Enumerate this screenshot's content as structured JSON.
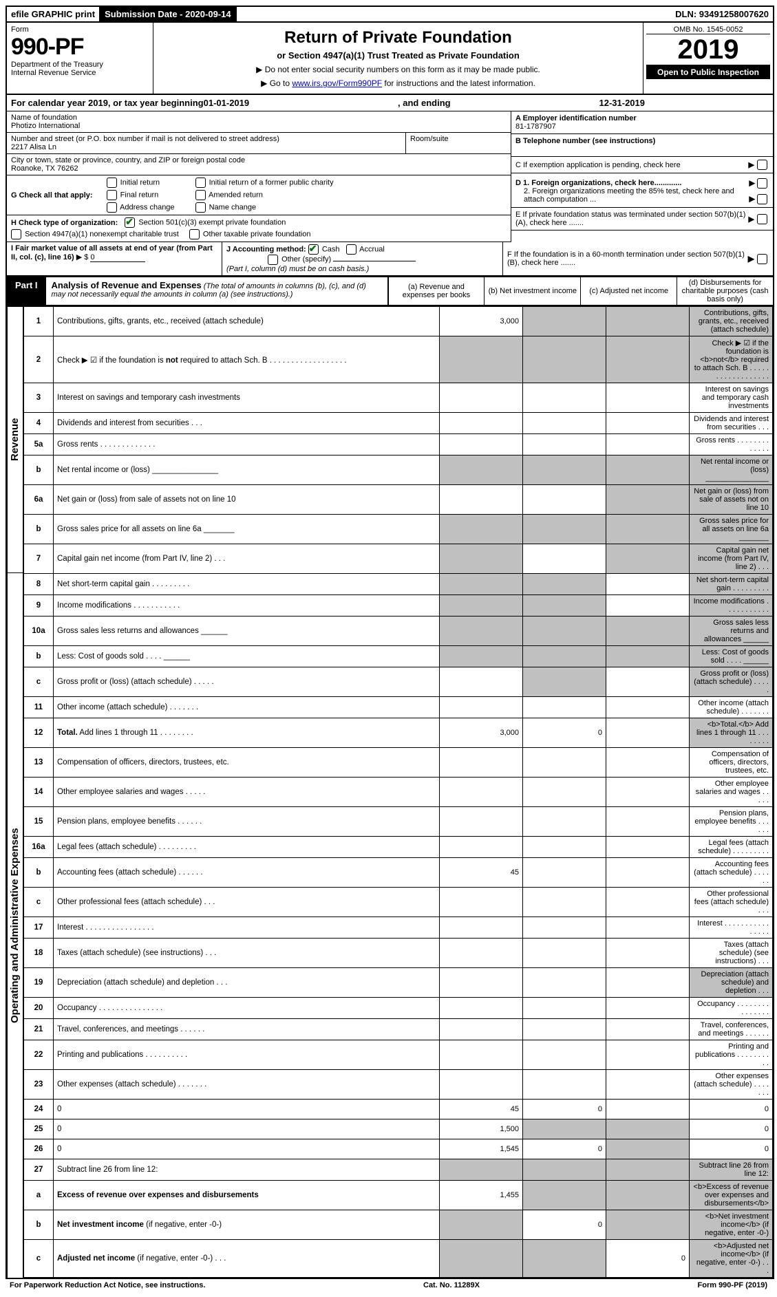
{
  "topbar": {
    "efile": "efile GRAPHIC print",
    "submission_label": "Submission Date - 2020-09-14",
    "dln": "DLN: 93491258007620"
  },
  "header": {
    "form_word": "Form",
    "form_no": "990-PF",
    "dept": "Department of the Treasury",
    "irs": "Internal Revenue Service",
    "title": "Return of Private Foundation",
    "subtitle": "or Section 4947(a)(1) Trust Treated as Private Foundation",
    "instr1": "▶ Do not enter social security numbers on this form as it may be made public.",
    "instr2_prefix": "▶ Go to ",
    "instr2_link": "www.irs.gov/Form990PF",
    "instr2_suffix": " for instructions and the latest information.",
    "omb": "OMB No. 1545-0052",
    "year": "2019",
    "open": "Open to Public Inspection"
  },
  "calyear": {
    "prefix": "For calendar year 2019, or tax year beginning ",
    "begin": "01-01-2019",
    "mid": " , and ending ",
    "end": "12-31-2019"
  },
  "name_block": {
    "name_label": "Name of foundation",
    "name": "Photizo International",
    "addr_label": "Number and street (or P.O. box number if mail is not delivered to street address)",
    "addr": "2217 Alisa Ln",
    "room_label": "Room/suite",
    "city_label": "City or town, state or province, country, and ZIP or foreign postal code",
    "city": "Roanoke, TX  76262",
    "a_label": "A Employer identification number",
    "a_val": "81-1787907",
    "b_label": "B Telephone number (see instructions)",
    "c_label": "C If exemption application is pending, check here"
  },
  "g": {
    "label": "G Check all that apply:",
    "initial": "Initial return",
    "final": "Final return",
    "addr_change": "Address change",
    "init_former": "Initial return of a former public charity",
    "amended": "Amended return",
    "name_change": "Name change"
  },
  "d": {
    "d1": "D 1. Foreign organizations, check here.............",
    "d2": "2. Foreign organizations meeting the 85% test, check here and attach computation ..."
  },
  "h": {
    "label": "H Check type of organization:",
    "s501": "Section 501(c)(3) exempt private foundation",
    "s4947": "Section 4947(a)(1) nonexempt charitable trust",
    "other": "Other taxable private foundation"
  },
  "e": "E If private foundation status was terminated under section 507(b)(1)(A), check here .......",
  "i": {
    "label": "I Fair market value of all assets at end of year (from Part II, col. (c), line 16)",
    "val_prefix": "▶ $",
    "val": "0"
  },
  "j": {
    "label": "J Accounting method:",
    "cash": "Cash",
    "accrual": "Accrual",
    "other": "Other (specify)",
    "note": "(Part I, column (d) must be on cash basis.)"
  },
  "f": "F If the foundation is in a 60-month termination under section 507(b)(1)(B), check here .......",
  "part1": {
    "tab": "Part I",
    "title": "Analysis of Revenue and Expenses",
    "note": "(The total of amounts in columns (b), (c), and (d) may not necessarily equal the amounts in column (a) (see instructions).)",
    "col_a": "(a) Revenue and expenses per books",
    "col_b": "(b) Net investment income",
    "col_c": "(c) Adjusted net income",
    "col_d": "(d) Disbursements for charitable purposes (cash basis only)"
  },
  "section_labels": {
    "revenue": "Revenue",
    "opex": "Operating and Administrative Expenses"
  },
  "rows": [
    {
      "n": "1",
      "d": "Contributions, gifts, grants, etc., received (attach schedule)",
      "a": "3,000",
      "grey_bcd": true
    },
    {
      "n": "2",
      "d": "Check ▶ ☑ if the foundation is <b>not</b> required to attach Sch. B  . . . . . . . . . . . . . . . . . .",
      "grey_all": true
    },
    {
      "n": "3",
      "d": "Interest on savings and temporary cash investments"
    },
    {
      "n": "4",
      "d": "Dividends and interest from securities   .  .  ."
    },
    {
      "n": "5a",
      "d": "Gross rents   . . . . . . . . . . . . ."
    },
    {
      "n": "b",
      "d": "Net rental income or (loss) _______________",
      "grey_all": true
    },
    {
      "n": "6a",
      "d": "Net gain or (loss) from sale of assets not on line 10",
      "grey_cd": true
    },
    {
      "n": "b",
      "d": "Gross sales price for all assets on line 6a _______",
      "grey_all": true
    },
    {
      "n": "7",
      "d": "Capital gain net income (from Part IV, line 2)   .  .  .",
      "grey_acd": true
    },
    {
      "n": "8",
      "d": "Net short-term capital gain  . . . . . . . . .",
      "grey_abd": true
    },
    {
      "n": "9",
      "d": "Income modifications  . . . . . . . . . . .",
      "grey_abd": true
    },
    {
      "n": "10a",
      "d": "Gross sales less returns and allowances ______",
      "grey_all": true
    },
    {
      "n": "b",
      "d": "Less: Cost of goods sold   .  .  .  .  ______",
      "grey_all": true
    },
    {
      "n": "c",
      "d": "Gross profit or (loss) (attach schedule)   .  .  .  .  .",
      "grey_bd": true
    },
    {
      "n": "11",
      "d": "Other income (attach schedule)   .  .  .  .  .  .  ."
    },
    {
      "n": "12",
      "d": "<b>Total.</b> Add lines 1 through 11   .  .  .  .  .  .  .  .",
      "a": "3,000",
      "b": "0",
      "grey_d": true
    },
    {
      "n": "13",
      "d": "Compensation of officers, directors, trustees, etc."
    },
    {
      "n": "14",
      "d": "Other employee salaries and wages   .  .  .  .  ."
    },
    {
      "n": "15",
      "d": "Pension plans, employee benefits   .  .  .  .  .  ."
    },
    {
      "n": "16a",
      "d": "Legal fees (attach schedule)  . . . . . . . . ."
    },
    {
      "n": "b",
      "d": "Accounting fees (attach schedule)   .  .  .  .  .  .",
      "a": "45"
    },
    {
      "n": "c",
      "d": "Other professional fees (attach schedule)   .  .  ."
    },
    {
      "n": "17",
      "d": "Interest  . . . . . . . . . . . . . . . ."
    },
    {
      "n": "18",
      "d": "Taxes (attach schedule) (see instructions)   .  .  ."
    },
    {
      "n": "19",
      "d": "Depreciation (attach schedule) and depletion   .  .  .",
      "grey_d": true
    },
    {
      "n": "20",
      "d": "Occupancy  . . . . . . . . . . . . . . ."
    },
    {
      "n": "21",
      "d": "Travel, conferences, and meetings  . . . . . ."
    },
    {
      "n": "22",
      "d": "Printing and publications  . . . . . . . . . ."
    },
    {
      "n": "23",
      "d": "Other expenses (attach schedule)  . . . . . . ."
    },
    {
      "n": "24",
      "d": "0",
      "a": "45",
      "b": "0"
    },
    {
      "n": "25",
      "d": "0",
      "a": "1,500",
      "grey_bc": true
    },
    {
      "n": "26",
      "d": "0",
      "a": "1,545",
      "b": "0",
      "grey_c": true
    },
    {
      "n": "27",
      "d": "Subtract line 26 from line 12:",
      "grey_all": true
    },
    {
      "n": "a",
      "d": "<b>Excess of revenue over expenses and disbursements</b>",
      "a": "1,455",
      "grey_bcd": true
    },
    {
      "n": "b",
      "d": "<b>Net investment income</b> (if negative, enter -0-)",
      "b": "0",
      "grey_acd": true
    },
    {
      "n": "c",
      "d": "<b>Adjusted net income</b> (if negative, enter -0-)   .  .  .",
      "c": "0",
      "grey_abd": true
    }
  ],
  "footer": {
    "left": "For Paperwork Reduction Act Notice, see instructions.",
    "mid": "Cat. No. 11289X",
    "right": "Form 990-PF (2019)"
  }
}
